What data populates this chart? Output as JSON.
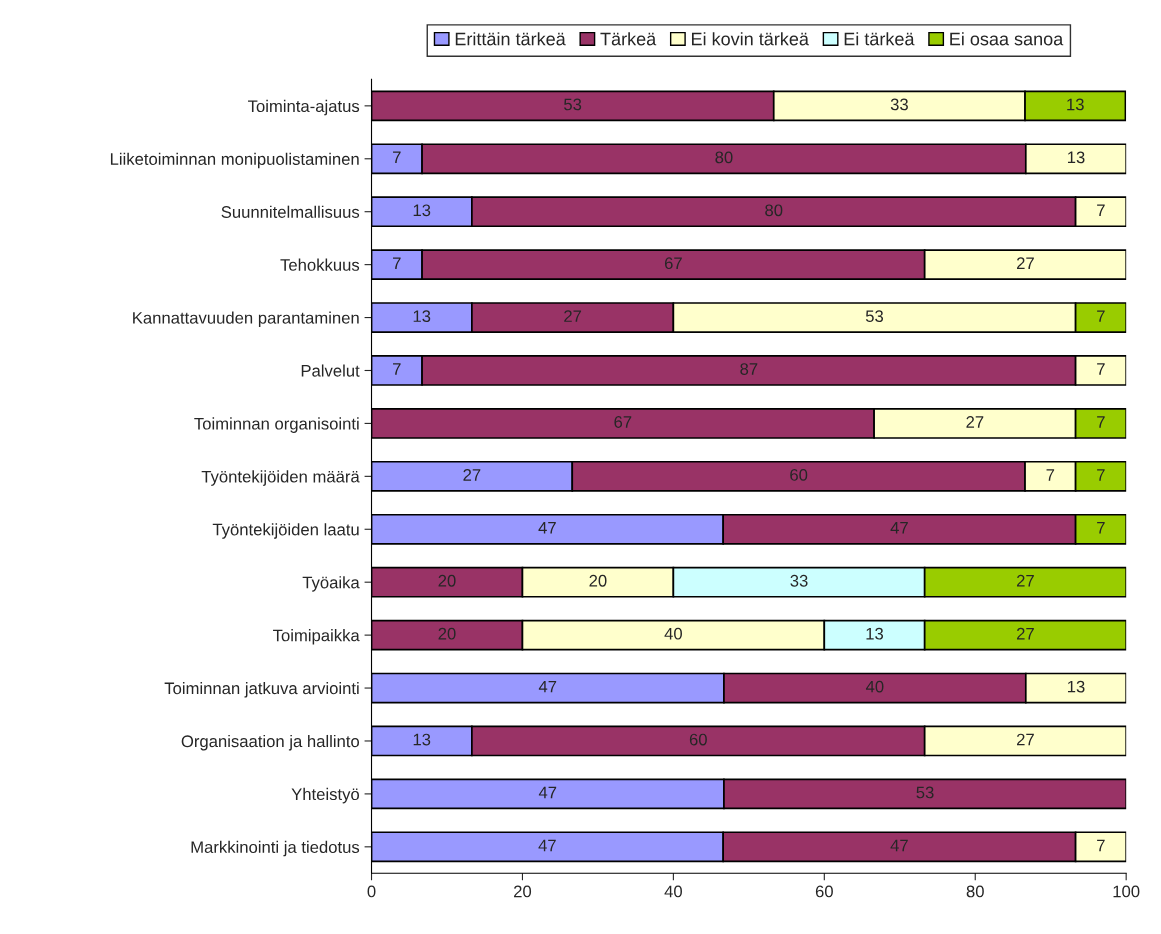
{
  "chart_data": {
    "type": "bar",
    "orientation": "horizontal",
    "stacked": true,
    "legend": "top",
    "grid": false,
    "categories": [
      "Toiminta-ajatus",
      "Liiketoiminnan monipuolistaminen",
      "Suunnitelmallisuus",
      "Tehokkuus",
      "Kannattavuuden parantaminen",
      "Palvelut",
      "Toiminnan organisointi",
      "Työntekijöiden määrä",
      "Työntekijöiden laatu",
      "Työaika",
      "Toimipaikka",
      "Toiminnan jatkuva arviointi",
      "Organisaation ja hallinto",
      "Yhteistyö",
      "Markkinointi ja tiedotus"
    ],
    "xlim": [
      0,
      100
    ],
    "xticks": [
      0,
      20,
      40,
      60,
      80,
      100
    ],
    "series": [
      {
        "name": "Erittäin tärkeä",
        "color": "#9999ff",
        "values": [
          null,
          6.7,
          13.3,
          6.7,
          13.3,
          6.7,
          null,
          26.6,
          46.6,
          null,
          null,
          46.7,
          13.3,
          46.7,
          46.6
        ],
        "value_labels": [
          null,
          "7",
          "13",
          "7",
          "13",
          "7",
          null,
          "27",
          "47",
          null,
          null,
          "47",
          "13",
          "47",
          "47"
        ]
      },
      {
        "name": "Tärkeä",
        "color": "#993366",
        "values": [
          53.3,
          80,
          80,
          66.6,
          26.7,
          86.6,
          66.6,
          60,
          46.7,
          20,
          20,
          40,
          60,
          53.3,
          46.7
        ],
        "value_labels": [
          "53",
          "80",
          "80",
          "67",
          "27",
          "87",
          "67",
          "60",
          "47",
          "20",
          "20",
          "40",
          "60",
          "53",
          "47"
        ]
      },
      {
        "name": "Ei kovin tärkeä",
        "color": "#ffffcc",
        "values": [
          33.3,
          13.3,
          6.7,
          26.7,
          53.3,
          6.7,
          26.7,
          6.7,
          null,
          20,
          40,
          13.3,
          26.7,
          null,
          6.7
        ],
        "value_labels": [
          "33",
          "13",
          "7",
          "27",
          "53",
          "7",
          "27",
          "7",
          null,
          "20",
          "40",
          "13",
          "27",
          null,
          "7"
        ]
      },
      {
        "name": "Ei tärkeä",
        "color": "#ccffff",
        "values": [
          null,
          null,
          null,
          null,
          null,
          null,
          null,
          null,
          null,
          33.3,
          13.3,
          null,
          null,
          null,
          null
        ],
        "value_labels": [
          null,
          null,
          null,
          null,
          null,
          null,
          null,
          null,
          null,
          "33",
          "13",
          null,
          null,
          null,
          null
        ]
      },
      {
        "name": "Ei osaa sanoa",
        "color": "#99cc00",
        "values": [
          13.3,
          null,
          null,
          null,
          6.7,
          null,
          6.7,
          6.7,
          6.7,
          26.7,
          26.7,
          null,
          null,
          null,
          null
        ],
        "value_labels": [
          "13",
          null,
          null,
          null,
          "7",
          null,
          "7",
          "7",
          "7",
          "27",
          "27",
          null,
          null,
          null,
          null
        ]
      }
    ]
  }
}
